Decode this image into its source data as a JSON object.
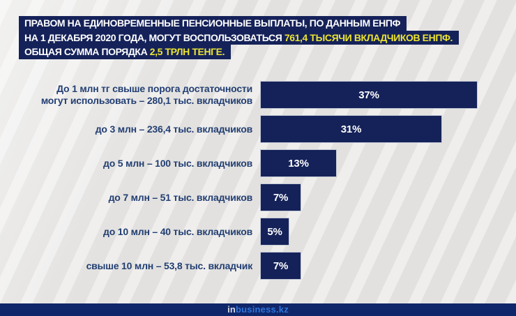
{
  "page": {
    "background_color": "#e9e8e6"
  },
  "header": {
    "bg_color": "#152259",
    "text_color": "#ffffff",
    "highlight_color": "#ece431",
    "lines": [
      {
        "text": "ПРАВОМ НА ЕДИНОВРЕМЕННЫЕ ПЕНСИОННЫЕ ВЫПЛАТЫ, ПО ДАННЫМ ЕНПФ",
        "highlight": ""
      },
      {
        "text": "НА 1 ДЕКАБРЯ 2020 ГОДА, МОГУТ ВОСПОЛЬЗОВАТЬСЯ ",
        "highlight": "761,4 ТЫСЯЧИ ВКЛАДЧИКОВ ЕНПФ."
      },
      {
        "text": "ОБЩАЯ СУММА ПОРЯДКА ",
        "highlight": "2,5 ТРЛН ТЕНГЕ."
      }
    ]
  },
  "chart_data": {
    "type": "bar",
    "orientation": "horizontal",
    "categories": [
      "До 1 млн тг свыше порога достаточности\nмогут использовать – 280,1 тыс. вкладчиков",
      "до 3 млн – 236,4 тыс. вкладчиков",
      "до 5 млн – 100 тыс. вкладчиков",
      "до 7 млн – 51 тыс. вкладчиков",
      "до 10 млн – 40 тыс. вкладчиков",
      "свыше 10 млн – 53,8 тыс. вкладчик"
    ],
    "values": [
      37,
      31,
      13,
      7,
      5,
      7
    ],
    "value_suffix": "%",
    "xlim": [
      0,
      40
    ],
    "bar_color": "#152259",
    "value_label_color": "#ffffff",
    "category_label_color": "#223e72",
    "grid": false,
    "legend": false
  },
  "footer": {
    "bg_color": "#10266b",
    "logo_prefix": "in",
    "logo_suffix": "business.kz",
    "logo_prefix_color": "#d8dae2",
    "logo_suffix_color": "#2e74da"
  }
}
